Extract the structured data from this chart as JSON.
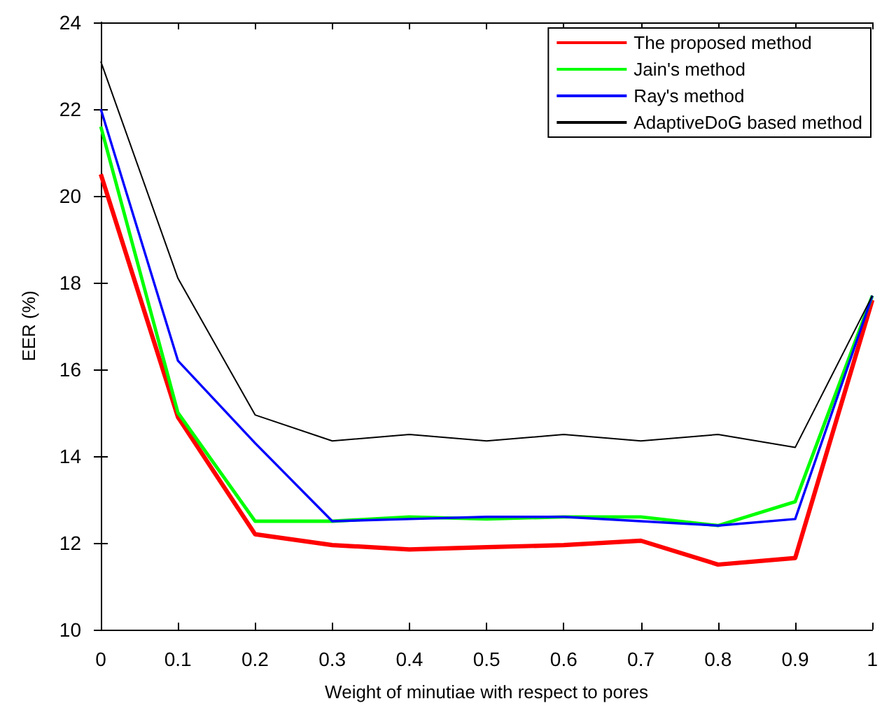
{
  "chart_data": {
    "type": "line",
    "xlabel": "Weight of minutiae with respect to pores",
    "ylabel": "EER (%)",
    "x": [
      0,
      0.1,
      0.2,
      0.3,
      0.4,
      0.5,
      0.6,
      0.7,
      0.8,
      0.9,
      1
    ],
    "series": [
      {
        "name": "The proposed method",
        "color": "#ff0000",
        "values": [
          20.5,
          14.9,
          12.2,
          11.95,
          11.85,
          11.9,
          11.95,
          12.05,
          11.5,
          11.65,
          17.6
        ]
      },
      {
        "name": "Jain's method",
        "color": "#00ff00",
        "values": [
          21.6,
          15.0,
          12.5,
          12.5,
          12.6,
          12.55,
          12.6,
          12.6,
          12.4,
          12.95,
          17.7
        ]
      },
      {
        "name": "Ray's method",
        "color": "#0000ff",
        "values": [
          22.0,
          16.2,
          14.3,
          12.5,
          12.55,
          12.6,
          12.6,
          12.5,
          12.4,
          12.55,
          17.7
        ]
      },
      {
        "name": "AdaptiveDoG based method",
        "color": "#000000",
        "values": [
          23.1,
          18.1,
          14.95,
          14.35,
          14.5,
          14.35,
          14.5,
          14.35,
          14.5,
          14.2,
          17.7
        ]
      }
    ],
    "xlim": [
      0,
      1
    ],
    "xticks": [
      0,
      0.1,
      0.2,
      0.3,
      0.4,
      0.5,
      0.6,
      0.7,
      0.8,
      0.9,
      1
    ],
    "ylim": [
      10,
      24
    ],
    "yticks": [
      10,
      12,
      14,
      16,
      18,
      20,
      22,
      24
    ],
    "grid": false,
    "legend": "top right",
    "marker": "none",
    "line_style": "solid"
  }
}
